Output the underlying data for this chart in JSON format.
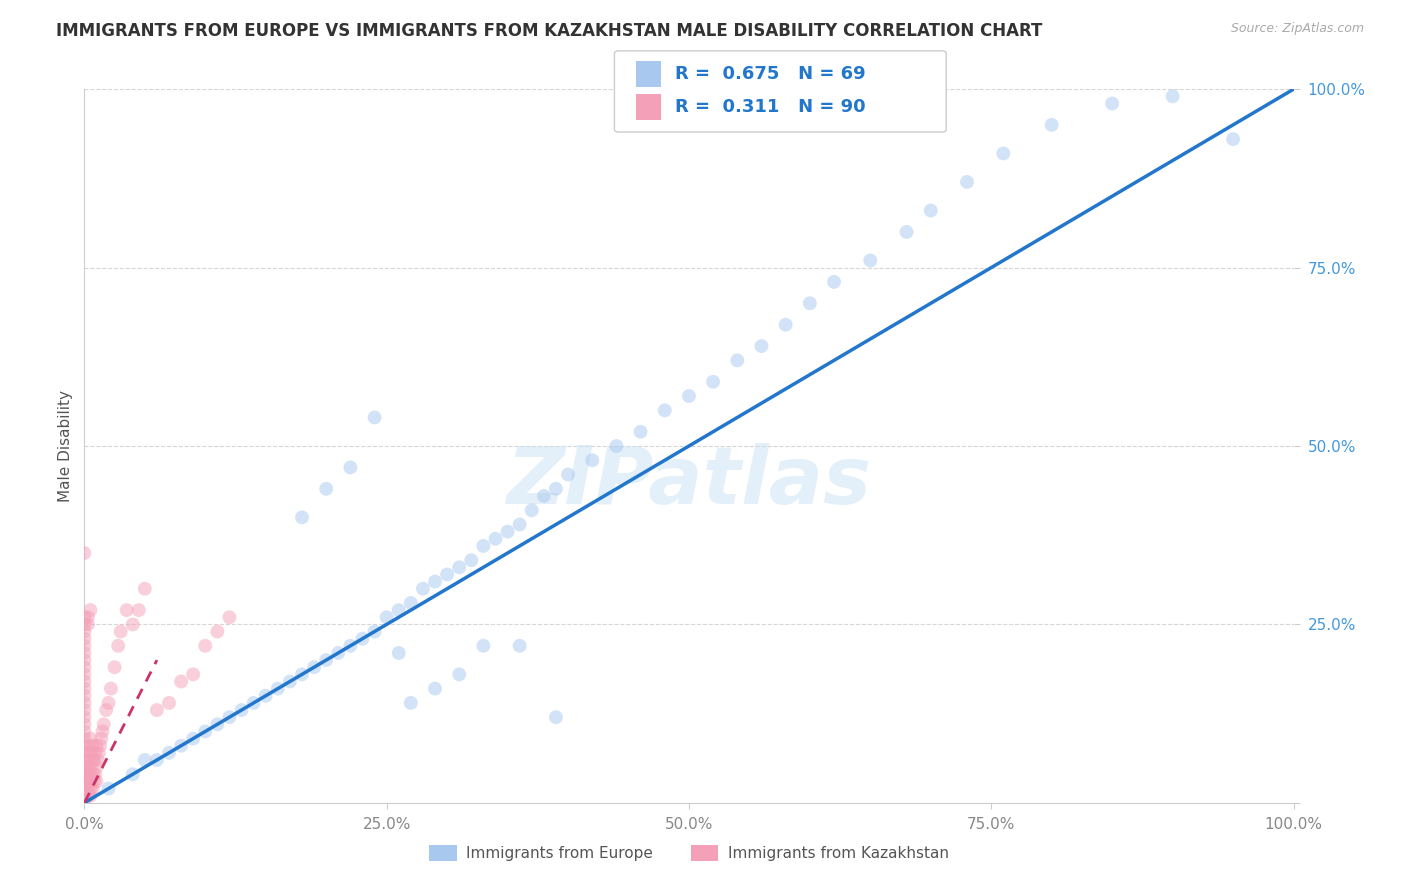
{
  "title": "IMMIGRANTS FROM EUROPE VS IMMIGRANTS FROM KAZAKHSTAN MALE DISABILITY CORRELATION CHART",
  "source": "Source: ZipAtlas.com",
  "ylabel": "Male Disability",
  "watermark": "ZIPatlas",
  "legend_blue_R": "0.675",
  "legend_blue_N": "69",
  "legend_pink_R": "0.311",
  "legend_pink_N": "90",
  "legend_label_blue": "Immigrants from Europe",
  "legend_label_pink": "Immigrants from Kazakhstan",
  "blue_color": "#a8c8f0",
  "pink_color": "#f4a0b8",
  "blue_line_color": "#2277cc",
  "pink_line_color": "#cc3366",
  "blue_scatter_x": [
    0.02,
    0.04,
    0.05,
    0.06,
    0.07,
    0.08,
    0.09,
    0.1,
    0.11,
    0.12,
    0.13,
    0.14,
    0.15,
    0.16,
    0.17,
    0.18,
    0.19,
    0.2,
    0.21,
    0.22,
    0.23,
    0.24,
    0.25,
    0.26,
    0.27,
    0.28,
    0.29,
    0.3,
    0.31,
    0.32,
    0.33,
    0.34,
    0.35,
    0.36,
    0.37,
    0.38,
    0.39,
    0.4,
    0.42,
    0.44,
    0.46,
    0.48,
    0.5,
    0.52,
    0.54,
    0.56,
    0.58,
    0.6,
    0.62,
    0.65,
    0.68,
    0.7,
    0.73,
    0.76,
    0.8,
    0.85,
    0.9,
    0.95,
    0.27,
    0.29,
    0.31,
    0.33,
    0.36,
    0.39,
    0.18,
    0.2,
    0.22,
    0.24,
    0.26
  ],
  "blue_scatter_y": [
    0.02,
    0.04,
    0.06,
    0.06,
    0.07,
    0.08,
    0.09,
    0.1,
    0.11,
    0.12,
    0.13,
    0.14,
    0.15,
    0.16,
    0.17,
    0.18,
    0.19,
    0.2,
    0.21,
    0.22,
    0.23,
    0.24,
    0.26,
    0.27,
    0.28,
    0.3,
    0.31,
    0.32,
    0.33,
    0.34,
    0.36,
    0.37,
    0.38,
    0.39,
    0.41,
    0.43,
    0.44,
    0.46,
    0.48,
    0.5,
    0.52,
    0.55,
    0.57,
    0.59,
    0.62,
    0.64,
    0.67,
    0.7,
    0.73,
    0.76,
    0.8,
    0.83,
    0.87,
    0.91,
    0.95,
    0.98,
    0.99,
    0.93,
    0.14,
    0.16,
    0.18,
    0.22,
    0.22,
    0.12,
    0.4,
    0.44,
    0.47,
    0.54,
    0.21
  ],
  "pink_scatter_x": [
    0.0,
    0.0,
    0.0,
    0.0,
    0.0,
    0.0,
    0.0,
    0.0,
    0.0,
    0.0,
    0.0,
    0.0,
    0.0,
    0.0,
    0.0,
    0.0,
    0.0,
    0.0,
    0.0,
    0.0,
    0.0,
    0.003,
    0.003,
    0.003,
    0.003,
    0.003,
    0.003,
    0.003,
    0.003,
    0.005,
    0.005,
    0.005,
    0.005,
    0.005,
    0.005,
    0.005,
    0.007,
    0.007,
    0.007,
    0.007,
    0.008,
    0.008,
    0.009,
    0.009,
    0.01,
    0.01,
    0.01,
    0.011,
    0.012,
    0.013,
    0.014,
    0.015,
    0.016,
    0.018,
    0.02,
    0.022,
    0.025,
    0.028,
    0.03,
    0.035,
    0.04,
    0.045,
    0.05,
    0.06,
    0.07,
    0.08,
    0.09,
    0.1,
    0.11,
    0.12,
    0.0,
    0.0,
    0.0,
    0.0,
    0.0,
    0.0,
    0.0,
    0.0,
    0.0,
    0.0,
    0.0,
    0.0,
    0.0,
    0.0,
    0.0,
    0.0,
    0.0,
    0.003,
    0.003,
    0.005
  ],
  "pink_scatter_y": [
    0.0,
    0.01,
    0.01,
    0.01,
    0.01,
    0.02,
    0.02,
    0.02,
    0.02,
    0.03,
    0.03,
    0.03,
    0.04,
    0.04,
    0.05,
    0.05,
    0.06,
    0.07,
    0.08,
    0.09,
    0.35,
    0.01,
    0.02,
    0.03,
    0.04,
    0.05,
    0.06,
    0.07,
    0.08,
    0.01,
    0.02,
    0.03,
    0.04,
    0.05,
    0.07,
    0.09,
    0.02,
    0.04,
    0.06,
    0.08,
    0.03,
    0.06,
    0.04,
    0.07,
    0.03,
    0.05,
    0.08,
    0.06,
    0.07,
    0.08,
    0.09,
    0.1,
    0.11,
    0.13,
    0.14,
    0.16,
    0.19,
    0.22,
    0.24,
    0.27,
    0.25,
    0.27,
    0.3,
    0.13,
    0.14,
    0.17,
    0.18,
    0.22,
    0.24,
    0.26,
    0.1,
    0.11,
    0.12,
    0.13,
    0.14,
    0.15,
    0.16,
    0.17,
    0.18,
    0.19,
    0.2,
    0.21,
    0.22,
    0.23,
    0.24,
    0.25,
    0.26,
    0.25,
    0.26,
    0.27
  ],
  "blue_line_x": [
    0.0,
    1.0
  ],
  "blue_line_y": [
    0.0,
    1.0
  ],
  "pink_line_x_start": 0.0,
  "pink_line_x_end": 0.06,
  "xlim": [
    0.0,
    1.0
  ],
  "ylim": [
    0.0,
    1.0
  ],
  "xticks": [
    0.0,
    0.25,
    0.5,
    0.75,
    1.0
  ],
  "xticklabels": [
    "0.0%",
    "25.0%",
    "50.0%",
    "75.0%",
    "100.0%"
  ],
  "yticks": [
    0.0,
    0.25,
    0.5,
    0.75,
    1.0
  ],
  "yticklabels": [
    "0.0%",
    "25.0%",
    "50.0%",
    "75.0%",
    "100.0%"
  ],
  "grid_color": "#cccccc",
  "background_color": "#ffffff",
  "marker_size": 100,
  "marker_alpha": 0.5,
  "title_fontsize": 12,
  "axis_label_fontsize": 11,
  "tick_fontsize": 11,
  "tick_color_y": "#4499dd",
  "tick_color_x": "#888888"
}
